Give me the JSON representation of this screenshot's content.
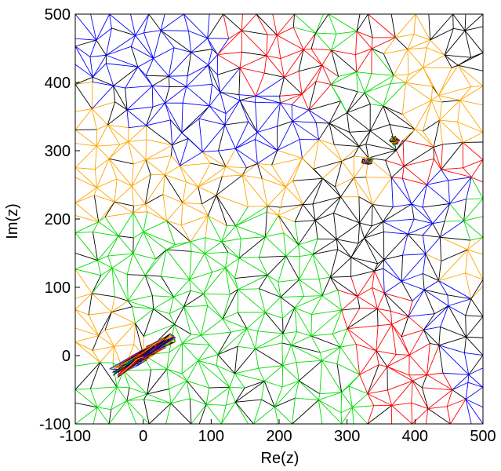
{
  "chart_data": {
    "type": "scatter",
    "title": "",
    "xlabel": "Re(z)",
    "ylabel": "Im(z)",
    "xlim": [
      -100,
      500
    ],
    "ylim": [
      -100,
      500
    ],
    "xticks": [
      -100,
      0,
      100,
      200,
      300,
      400,
      500
    ],
    "yticks": [
      -100,
      0,
      100,
      200,
      300,
      400,
      500
    ],
    "grid": false,
    "legend": "none",
    "description_of_marks": "triangulated mesh of the complex plane, edges colored by region",
    "series": [
      {
        "color": "#0000ff",
        "region_seeds": [
          [
            -50,
            470
          ],
          [
            50,
            430
          ],
          [
            100,
            350
          ],
          [
            0,
            380
          ],
          [
            180,
            330
          ],
          [
            60,
            340
          ]
        ]
      },
      {
        "color": "#ff0000",
        "region_seeds": [
          [
            190,
            460
          ],
          [
            240,
            430
          ],
          [
            320,
            450
          ],
          [
            360,
            70
          ],
          [
            360,
            0
          ],
          [
            400,
            -40
          ],
          [
            470,
            280
          ],
          [
            420,
            300
          ]
        ]
      },
      {
        "color": "#00dd00",
        "region_seeds": [
          [
            280,
            480
          ],
          [
            330,
            400
          ],
          [
            0,
            120
          ],
          [
            100,
            80
          ],
          [
            200,
            40
          ],
          [
            150,
            160
          ],
          [
            230,
            120
          ],
          [
            -80,
            -40
          ],
          [
            50,
            -60
          ],
          [
            270,
            -20
          ],
          [
            480,
            220
          ]
        ]
      },
      {
        "color": "#ffa500",
        "region_seeds": [
          [
            -80,
            320
          ],
          [
            0,
            280
          ],
          [
            100,
            240
          ],
          [
            200,
            250
          ],
          [
            300,
            260
          ],
          [
            -70,
            30
          ],
          [
            490,
            340
          ],
          [
            420,
            330
          ],
          [
            460,
            130
          ],
          [
            400,
            440
          ]
        ]
      },
      {
        "color": "#000000",
        "region_seeds": [
          [
            320,
            160
          ],
          [
            270,
            230
          ],
          [
            460,
            480
          ],
          [
            340,
            330
          ],
          [
            480,
            20
          ]
        ]
      },
      {
        "color": "#0000ff",
        "region_seeds": [
          [
            390,
            110
          ],
          [
            440,
            90
          ],
          [
            480,
            0
          ],
          [
            420,
            200
          ],
          [
            460,
            240
          ]
        ]
      }
    ],
    "clusters": [
      {
        "center": [
          0,
          0
        ],
        "spread": [
          45,
          30
        ]
      },
      {
        "center": [
          330,
          285
        ],
        "spread": [
          10,
          6
        ]
      },
      {
        "center": [
          370,
          315
        ],
        "spread": [
          8,
          8
        ]
      }
    ]
  }
}
